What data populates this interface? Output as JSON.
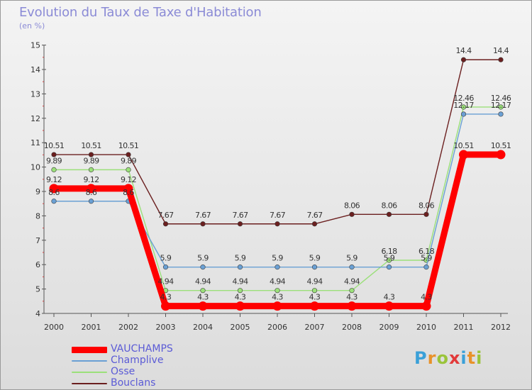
{
  "header": {
    "title": "Evolution du Taux de Taxe d'Habitation",
    "subtitle": "(en %)"
  },
  "brand": {
    "letters": [
      "P",
      "r",
      "o",
      "x",
      "i",
      "t",
      "i"
    ],
    "colors": [
      "#3aa0d8",
      "#e8922a",
      "#9ac43a",
      "#e23a3a",
      "#3aa0d8",
      "#e8922a",
      "#9ac43a"
    ]
  },
  "chart_data": {
    "type": "line",
    "title": "Evolution du Taux de Taxe d'Habitation",
    "ylabel": "(en %)",
    "xlabel": "",
    "x": [
      "2000",
      "2001",
      "2002",
      "2003",
      "2004",
      "2005",
      "2006",
      "2007",
      "2008",
      "2009",
      "2010",
      "2011",
      "2012"
    ],
    "ylim": [
      4,
      15
    ],
    "yticks": [
      "4",
      "5",
      "6",
      "7",
      "8",
      "9",
      "10",
      "11",
      "12",
      "13",
      "14",
      "15"
    ],
    "grid": false,
    "legend_position": "bottom-left",
    "series": [
      {
        "name": "Bouclans",
        "color": "#6b1f1f",
        "values": [
          10.51,
          10.51,
          10.51,
          7.67,
          7.67,
          7.67,
          7.67,
          7.67,
          8.06,
          8.06,
          8.06,
          14.4,
          14.4
        ],
        "labels": [
          "10.51",
          "10.51",
          "10.51",
          "7.67",
          "7.67",
          "7.67",
          "7.67",
          "7.67",
          "8.06",
          "8.06",
          "8.06",
          "14.4",
          "14.4"
        ]
      },
      {
        "name": "Osse",
        "color": "#9be07a",
        "values": [
          9.89,
          9.89,
          9.89,
          4.94,
          4.94,
          4.94,
          4.94,
          4.94,
          4.94,
          6.18,
          6.18,
          12.46,
          12.46
        ],
        "labels": [
          "9.89",
          "9.89",
          "9.89",
          "4.94",
          "4.94",
          "4.94",
          "4.94",
          "4.94",
          "4.94",
          "6.18",
          "6.18",
          "12.46",
          "12.46"
        ]
      },
      {
        "name": "Champlive",
        "color": "#6aa0d4",
        "values": [
          8.6,
          8.6,
          8.6,
          5.9,
          5.9,
          5.9,
          5.9,
          5.9,
          5.9,
          5.9,
          5.9,
          12.17,
          12.17
        ],
        "labels": [
          "8.6",
          "8.6",
          "8.6",
          "5.9",
          "5.9",
          "5.9",
          "5.9",
          "5.9",
          "5.9",
          "5.9",
          "5.9",
          "12.17",
          "12.17"
        ]
      },
      {
        "name": "VAUCHAMPS",
        "color": "#ff0000",
        "values": [
          9.12,
          9.12,
          9.12,
          4.3,
          4.3,
          4.3,
          4.3,
          4.3,
          4.3,
          4.3,
          4.3,
          10.51,
          10.51
        ],
        "labels": [
          "9.12",
          "9.12",
          "9.12",
          "4.3",
          "4.3",
          "4.3",
          "4.3",
          "4.3",
          "4.3",
          "4.3",
          "4.3",
          "10.51",
          "10.51"
        ]
      }
    ],
    "legend": [
      "VAUCHAMPS",
      "Champlive",
      "Osse",
      "Bouclans"
    ]
  }
}
